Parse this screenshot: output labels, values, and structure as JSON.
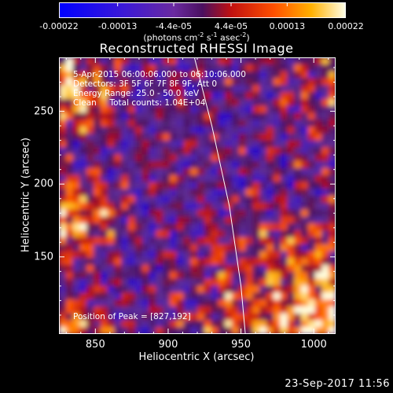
{
  "colorbar": {
    "ticks": [
      "-0.00022",
      "-0.00013",
      "-4.4e-05",
      "4.4e-05",
      "0.00013",
      "0.00022"
    ],
    "tick_values": [
      -0.00022,
      -0.00013,
      -4.4e-05,
      4.4e-05,
      0.00013,
      0.00022
    ],
    "units_html": "(photons cm<sup style=\"font-size:8px\">-2</sup> s<sup style=\"font-size:8px\">-1</sup> asec<sup style=\"font-size:8px\">-2</sup>)",
    "units": "(photons cm-2 s-1 asec-2)",
    "range": [
      -0.00022,
      0.00022
    ]
  },
  "chart_data": {
    "type": "heatmap",
    "title": "Reconstructed RHESSI Image",
    "xlabel": "Heliocentric X (arcsec)",
    "ylabel": "Heliocentric Y (arcsec)",
    "xlim": [
      825,
      1015
    ],
    "ylim": [
      97,
      287
    ],
    "xticks": [
      850,
      900,
      950,
      1000
    ],
    "yticks": [
      150,
      200,
      250
    ],
    "xtick_labels": [
      "850",
      "900",
      "950",
      "1000"
    ],
    "ytick_labels": [
      "150",
      "200",
      "250"
    ],
    "annotations": [
      "5-Apr-2015 06:00:06.000 to 06:10:06.000",
      "Detectors: 3F 5F 6F 7F 8F 9F, Att 0",
      "Energy Range: 25.0 - 50.0 keV",
      "Clean     Total counts: 1.04E+04"
    ],
    "peak_label": "Position of Peak = [827,192]",
    "peak": [
      827,
      192
    ],
    "limb_line": {
      "x": [
        918,
        930,
        942,
        950,
        953
      ],
      "y": [
        287,
        240,
        185,
        130,
        97
      ]
    },
    "colormap": "rhessi-bipolar"
  },
  "timestamp": "23-Sep-2017 11:56"
}
